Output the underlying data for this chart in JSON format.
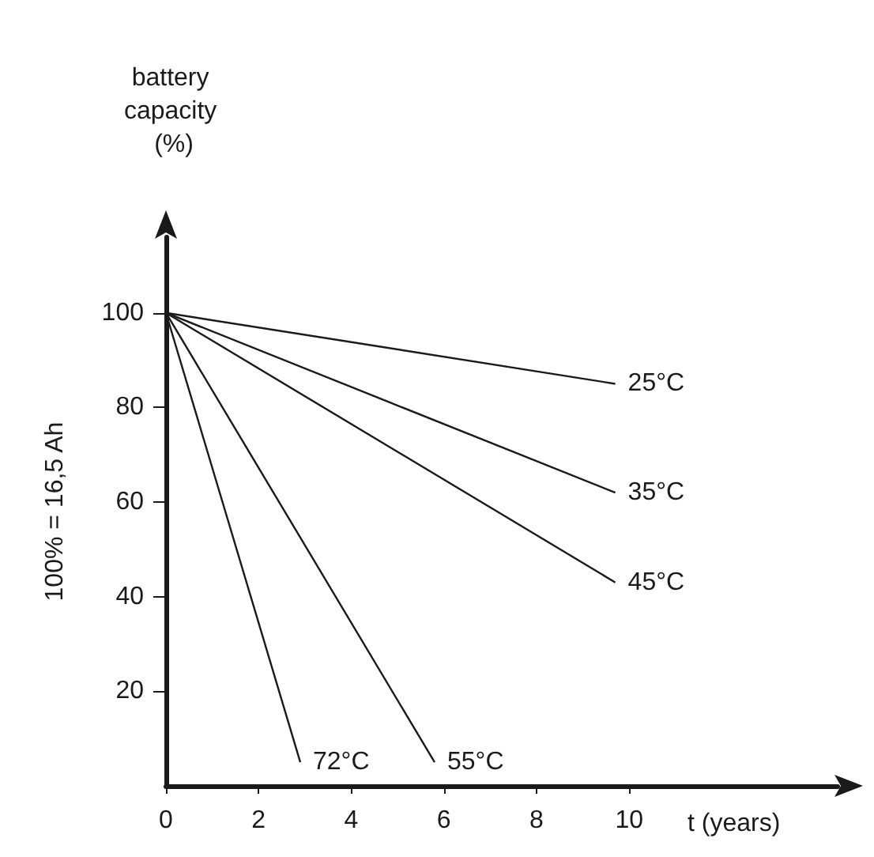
{
  "chart_data": {
    "type": "line",
    "title": "battery capacity (%)",
    "ylabel": "100% = 16,5 Ah",
    "xlabel": "t (years)",
    "series": [
      {
        "name": "25°C",
        "color": "#1a1a1a",
        "x": [
          0,
          9.7
        ],
        "values": [
          100,
          85
        ]
      },
      {
        "name": "35°C",
        "color": "#1a1a1a",
        "x": [
          0,
          9.7
        ],
        "values": [
          100,
          62
        ]
      },
      {
        "name": "45°C",
        "color": "#1a1a1a",
        "x": [
          0,
          9.7
        ],
        "values": [
          100,
          43
        ]
      },
      {
        "name": "55°C",
        "color": "#1a1a1a",
        "x": [
          0,
          5.8
        ],
        "values": [
          100,
          5
        ]
      },
      {
        "name": "72°C",
        "color": "#1a1a1a",
        "x": [
          0,
          2.9
        ],
        "values": [
          100,
          5
        ]
      }
    ],
    "xlim": [
      0,
      14.5
    ],
    "xticks": [
      0,
      2,
      4,
      6,
      8,
      10
    ],
    "ylim": [
      0,
      116
    ],
    "yticks": [
      20,
      40,
      60,
      80,
      100
    ],
    "grid": false,
    "legend": false,
    "marker": "none",
    "line_style": "solid"
  }
}
